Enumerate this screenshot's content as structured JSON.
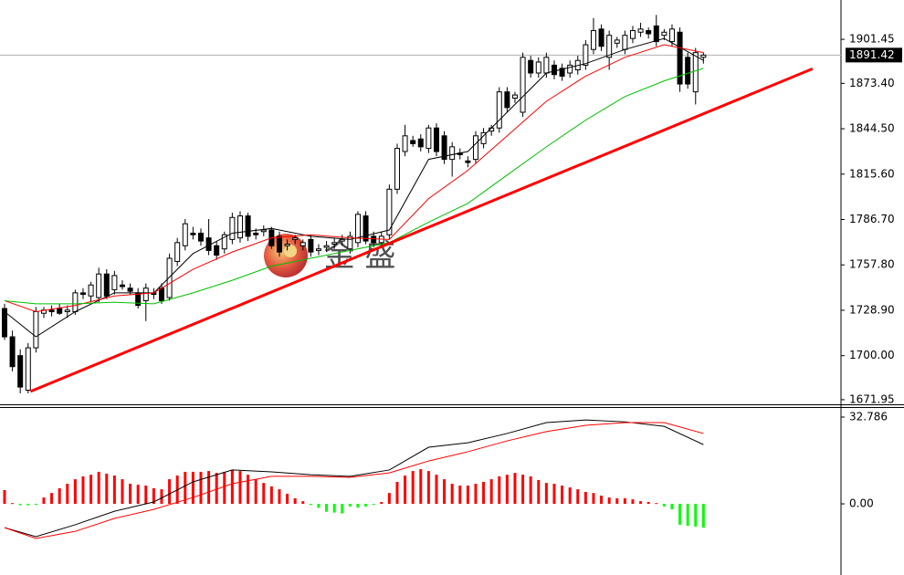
{
  "chart_data": [
    {
      "type": "candlestick",
      "xlim": [
        -0.58,
        106.4
      ],
      "ylim": [
        1669,
        1926.5
      ],
      "yticks": [
        1901.45,
        {
          "value": 1873.4,
          "label": "1873.40"
        },
        {
          "value": 1844.5,
          "label": "1844.50"
        },
        {
          "value": 1815.6,
          "label": "1815.60"
        },
        {
          "value": 1786.7,
          "label": "1786.70"
        },
        {
          "value": 1757.8,
          "label": "1757.80"
        },
        {
          "value": 1728.9,
          "label": "1728.90"
        },
        {
          "value": 1700,
          "label": "1700.00"
        },
        1671.95
      ],
      "current_price": 1891.42,
      "watermark": "金 盛",
      "bull_color": "#ffffff",
      "bear_color": "#000000",
      "candles": {
        "open": [
          1730,
          1712,
          1700,
          1678,
          1705,
          1727,
          1729,
          1730,
          1728,
          1728,
          1740,
          1738,
          1737,
          1752,
          1742,
          1745,
          1743,
          1740,
          1735,
          1740,
          1743,
          1737,
          1760,
          1770,
          1778,
          1778,
          1775,
          1770,
          1768,
          1774,
          1775,
          1789,
          1778,
          1779,
          1780,
          1776,
          1770,
          1774,
          1770,
          1774,
          1767,
          1769,
          1771,
          1773,
          1768,
          1772,
          1789,
          1776,
          1772,
          1777,
          1806,
          1830,
          1837,
          1838,
          1832,
          1845,
          1840,
          1825,
          1829,
          1824,
          1825,
          1835,
          1843,
          1845,
          1868,
          1864,
          1855,
          1888,
          1880,
          1880,
          1885,
          1883,
          1880,
          1882,
          1885,
          1895,
          1908,
          1890,
          1899,
          1895,
          1902,
          1906,
          1907,
          1910,
          1904,
          1900,
          1906,
          1890,
          1868,
          1890
        ],
        "high": [
          1733,
          1716,
          1704,
          1708,
          1731,
          1731,
          1732,
          1733,
          1732,
          1742,
          1743,
          1747,
          1756,
          1755,
          1754,
          1748,
          1746,
          1743,
          1746,
          1743,
          1746,
          1765,
          1775,
          1787,
          1782,
          1781,
          1787,
          1773,
          1779,
          1791,
          1792,
          1791,
          1781,
          1783,
          1782,
          1779,
          1774,
          1777,
          1774,
          1777,
          1771,
          1773,
          1775,
          1777,
          1779,
          1792,
          1792,
          1779,
          1779,
          1809,
          1835,
          1847,
          1840,
          1841,
          1847,
          1848,
          1843,
          1836,
          1832,
          1827,
          1843,
          1845,
          1847,
          1871,
          1871,
          1868,
          1893,
          1891,
          1890,
          1893,
          1888,
          1886,
          1888,
          1891,
          1901,
          1915,
          1911,
          1907,
          1903,
          1907,
          1910,
          1912,
          1909,
          1917,
          1908,
          1911,
          1909,
          1893,
          1896,
          1893
        ],
        "low": [
          1710,
          1690,
          1676,
          1676,
          1702,
          1724,
          1725,
          1726,
          1724,
          1726,
          1736,
          1734,
          1734,
          1736,
          1739,
          1742,
          1739,
          1730,
          1722,
          1736,
          1733,
          1735,
          1757,
          1767,
          1774,
          1770,
          1764,
          1761,
          1765,
          1771,
          1772,
          1773,
          1774,
          1776,
          1768,
          1763,
          1767,
          1771,
          1767,
          1763,
          1764,
          1766,
          1768,
          1770,
          1765,
          1769,
          1771,
          1769,
          1769,
          1774,
          1803,
          1827,
          1833,
          1830,
          1829,
          1827,
          1822,
          1814,
          1825,
          1820,
          1822,
          1832,
          1840,
          1842,
          1855,
          1861,
          1852,
          1877,
          1877,
          1877,
          1876,
          1875,
          1877,
          1879,
          1882,
          1892,
          1894,
          1882,
          1896,
          1892,
          1899,
          1903,
          1902,
          1897,
          1901,
          1897,
          1868,
          1870,
          1860,
          1886
        ],
        "close": [
          1712,
          1693,
          1680,
          1705,
          1728,
          1729,
          1728,
          1727,
          1729,
          1740,
          1739,
          1745,
          1752,
          1738,
          1751,
          1744,
          1741,
          1732,
          1743,
          1739,
          1735,
          1762,
          1772,
          1784,
          1777,
          1773,
          1767,
          1764,
          1777,
          1788,
          1789,
          1776,
          1777,
          1780,
          1770,
          1766,
          1771,
          1775,
          1772,
          1766,
          1768,
          1770,
          1772,
          1774,
          1776,
          1790,
          1773,
          1772,
          1776,
          1806,
          1832,
          1840,
          1835,
          1833,
          1845,
          1830,
          1825,
          1833,
          1828,
          1823,
          1840,
          1842,
          1845,
          1868,
          1858,
          1866,
          1890,
          1880,
          1887,
          1890,
          1879,
          1878,
          1885,
          1888,
          1898,
          1907,
          1897,
          1904,
          1901,
          1904,
          1907,
          1908,
          1905,
          1900,
          1906,
          1908,
          1873,
          1873,
          1893,
          1891.42
        ]
      },
      "lines": [
        {
          "color": "#000000",
          "x": [
            0,
            4,
            9,
            14,
            19,
            24,
            29,
            34,
            39,
            44,
            49,
            54,
            59,
            64,
            69,
            74,
            79,
            84,
            89
          ],
          "values": [
            1728,
            1712,
            1728,
            1740,
            1740,
            1765,
            1778,
            1781,
            1776,
            1774,
            1780,
            1825,
            1830,
            1855,
            1880,
            1886,
            1895,
            1902,
            1888
          ]
        },
        {
          "color": "#ff0000",
          "x": [
            0,
            4,
            9,
            14,
            19,
            24,
            29,
            34,
            39,
            44,
            49,
            54,
            59,
            64,
            69,
            74,
            79,
            84,
            89
          ],
          "values": [
            1735,
            1728,
            1732,
            1738,
            1740,
            1755,
            1766,
            1775,
            1777,
            1775,
            1774,
            1800,
            1818,
            1840,
            1862,
            1878,
            1890,
            1898,
            1893
          ]
        },
        {
          "color": "#00c000",
          "x": [
            0,
            4,
            9,
            14,
            19,
            24,
            29,
            34,
            39,
            44,
            49,
            54,
            59,
            64,
            69,
            74,
            79,
            84,
            89
          ],
          "values": [
            1735,
            1733,
            1733,
            1734,
            1733,
            1740,
            1748,
            1757,
            1762,
            1767,
            1772,
            1785,
            1797,
            1815,
            1833,
            1850,
            1865,
            1875,
            1883
          ]
        }
      ],
      "trendline": {
        "color": "#ff0000",
        "x": [
          3.3,
          102.9
        ],
        "values": [
          1677.2,
          1882.7
        ]
      }
    },
    {
      "type": "macd",
      "xlim": [
        -0.58,
        106.4
      ],
      "ylim": [
        -26.9,
        36.24
      ],
      "yticks": [
        32.786,
        {
          "value": 0,
          "label": "0.00"
        }
      ],
      "positive_color": "#ff0000",
      "negative_color": "#00ff00",
      "values": [
        5.2,
        0.3,
        -0.5,
        -0.5,
        -0.4,
        2.4,
        4.1,
        5.9,
        7.6,
        9.3,
        10.4,
        11,
        12.1,
        11.4,
        10.7,
        9.3,
        7.6,
        7.2,
        6.9,
        5.9,
        5.5,
        9.3,
        10.7,
        12.1,
        12.1,
        12.1,
        12.4,
        11.7,
        12.1,
        12.8,
        12.4,
        11,
        9.3,
        7.9,
        6.6,
        5.5,
        3.8,
        2.1,
        1,
        -0.4,
        -1.5,
        -3,
        -3.3,
        -3.6,
        -1,
        -1.4,
        -1,
        -0.4,
        0.7,
        4.1,
        8.3,
        10.7,
        12.4,
        13.1,
        12.4,
        11,
        9.3,
        7.6,
        6.9,
        6.9,
        7.6,
        8.3,
        9.3,
        10.4,
        11,
        11.7,
        11,
        10.4,
        9,
        7.9,
        7.6,
        6.9,
        6.2,
        5.5,
        4.5,
        4.1,
        3.1,
        2.4,
        2.1,
        2.1,
        1.7,
        1,
        0.7,
        0.3,
        -1,
        -2.1,
        -7.9,
        -8.3,
        -8.6,
        -9
      ],
      "lines": [
        {
          "color": "#000000",
          "x": [
            0,
            4,
            9,
            14,
            19,
            24,
            29,
            34,
            39,
            44,
            49,
            54,
            59,
            64,
            69,
            74,
            79,
            84,
            89
          ],
          "values": [
            -9,
            -12.4,
            -7.9,
            -2.8,
            0.7,
            8.3,
            12.8,
            12.1,
            11,
            10.4,
            12.8,
            21.4,
            23.1,
            26.6,
            30.7,
            31.7,
            31,
            29.3,
            22.4
          ]
        },
        {
          "color": "#ff0000",
          "x": [
            0,
            4,
            9,
            14,
            19,
            24,
            29,
            34,
            39,
            44,
            49,
            54,
            59,
            64,
            69,
            74,
            79,
            84,
            89
          ],
          "values": [
            -9,
            -13.1,
            -10.4,
            -5.5,
            -2.1,
            2.4,
            7.6,
            10.4,
            10.4,
            10,
            11.7,
            16.2,
            19.7,
            23.8,
            27.3,
            29.7,
            30.7,
            30.7,
            26.6
          ]
        }
      ]
    }
  ]
}
